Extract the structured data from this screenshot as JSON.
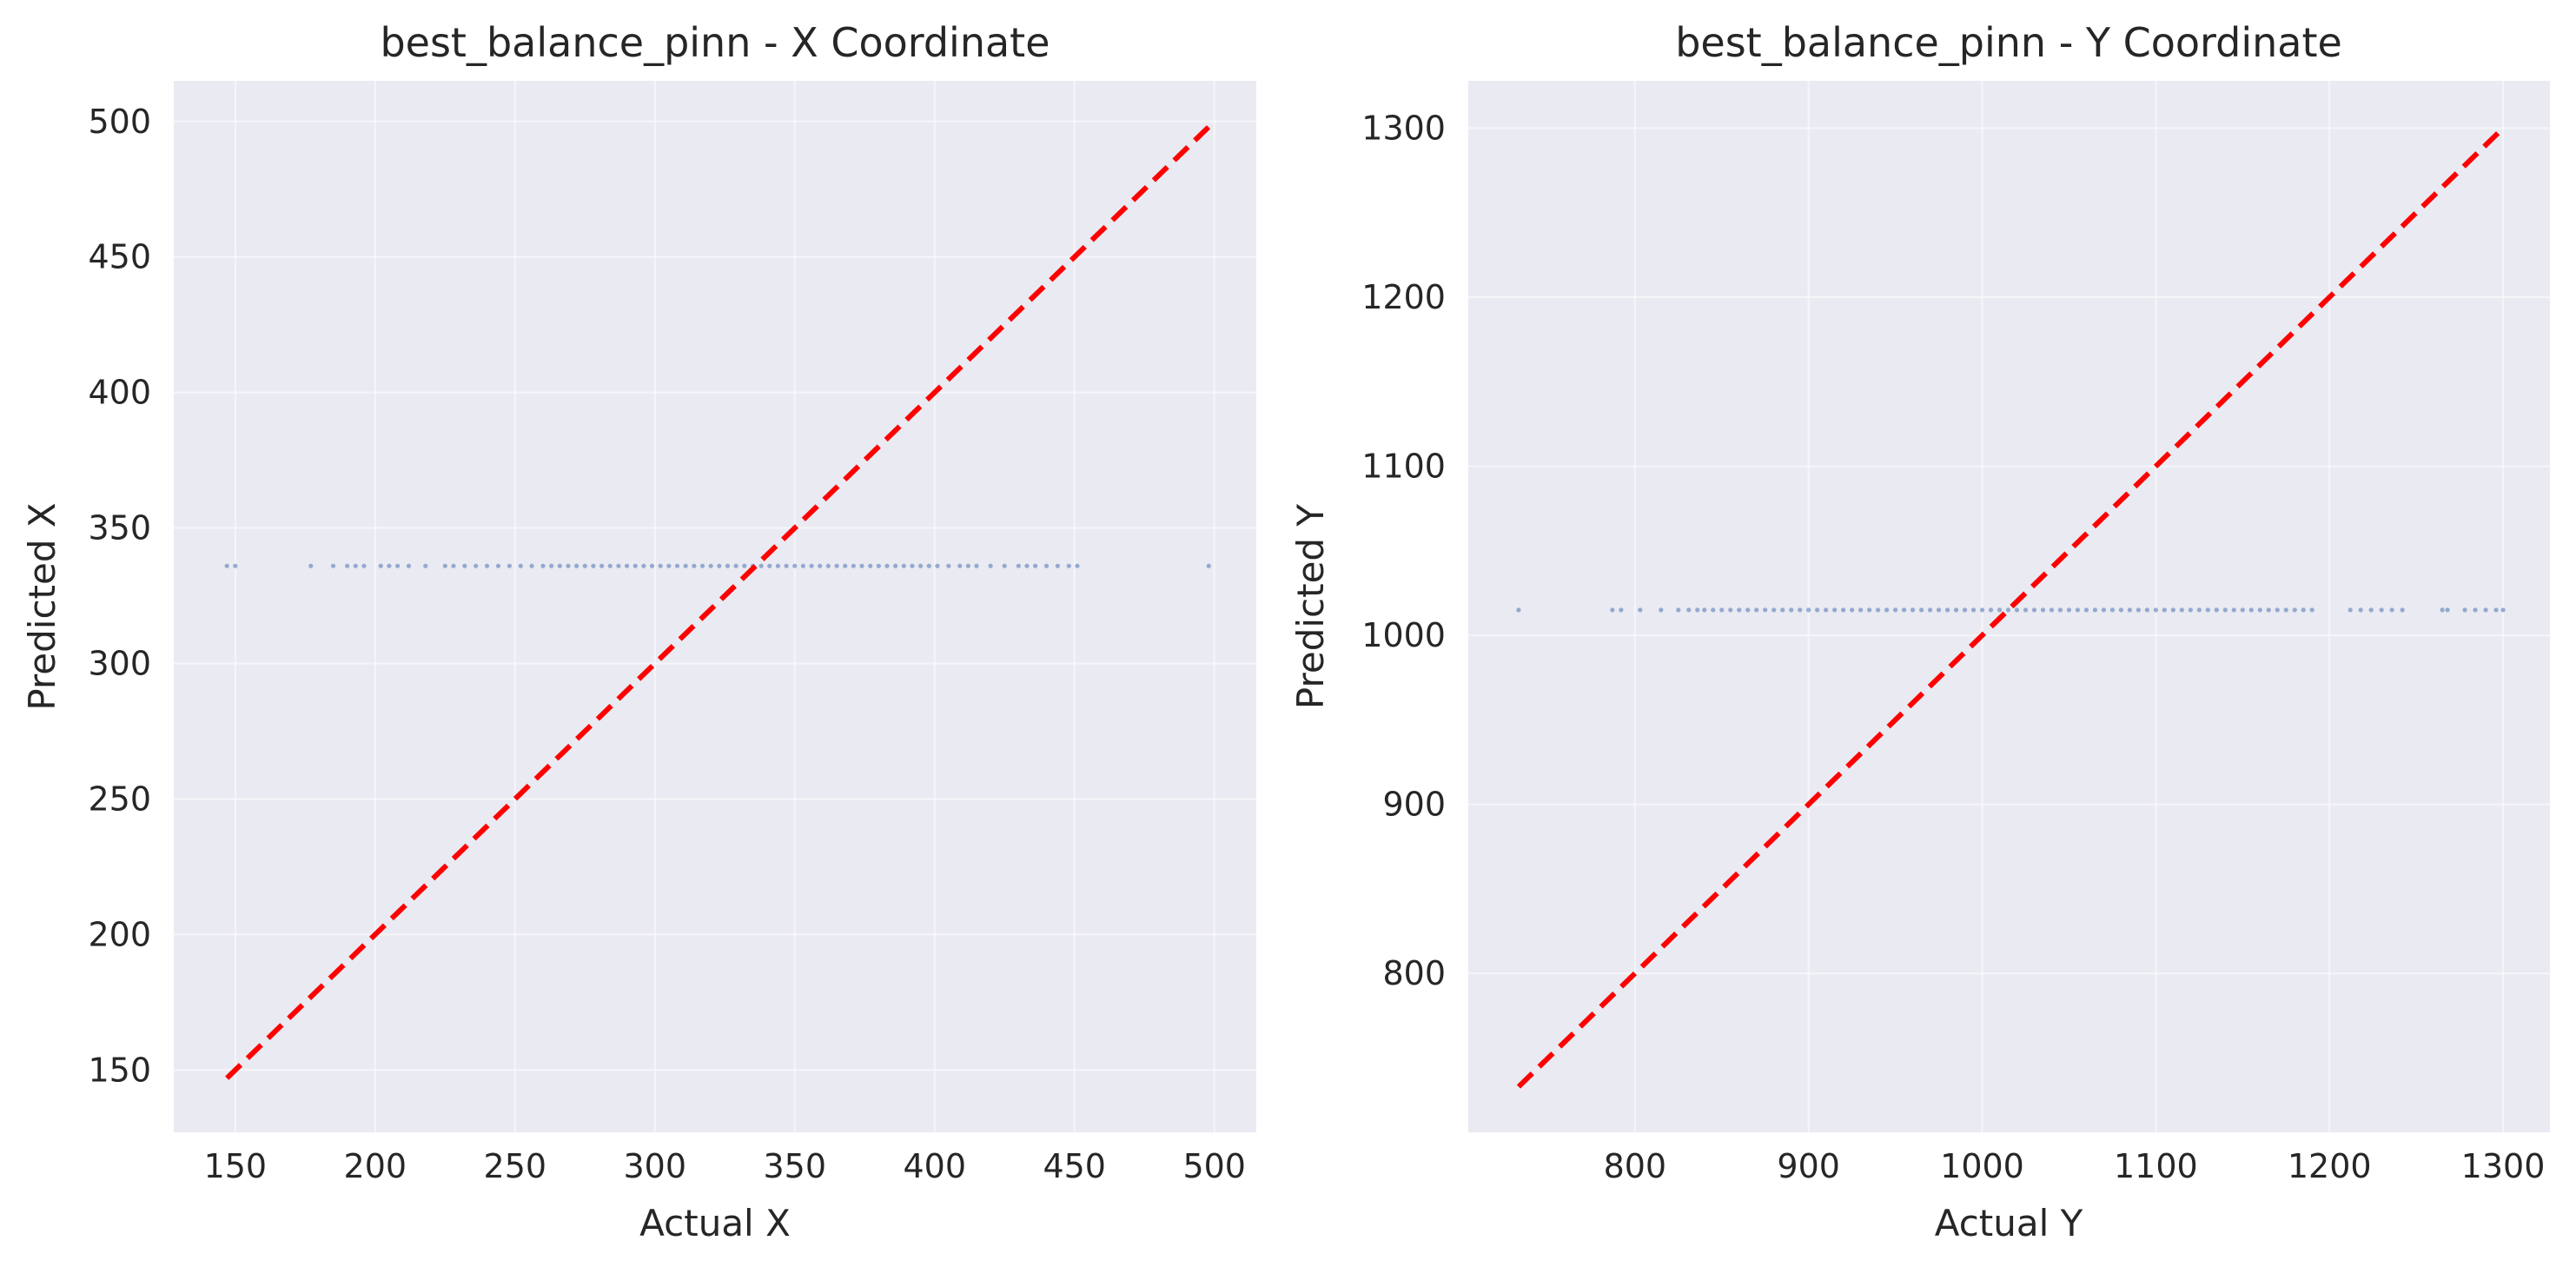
{
  "chart_data": [
    {
      "type": "scatter",
      "title": "best_balance_pinn - X Coordinate",
      "xlabel": "Actual X",
      "ylabel": "Predicted X",
      "xlim": [
        128,
        515
      ],
      "ylim": [
        127,
        515
      ],
      "xticks": [
        150,
        200,
        250,
        300,
        350,
        400,
        450,
        500
      ],
      "yticks": [
        150,
        200,
        250,
        300,
        350,
        400,
        450,
        500
      ],
      "grid": true,
      "reference_line": {
        "from": [
          147,
          147
        ],
        "to": [
          498,
          498
        ],
        "color": "#ff0000",
        "style": "dashed"
      },
      "series": [
        {
          "color": "#4c72b0",
          "x": [
            147,
            150,
            177,
            185,
            190,
            193,
            196,
            202,
            205,
            208,
            212,
            218,
            225,
            228,
            232,
            236,
            240,
            244,
            248,
            252,
            256,
            260,
            263,
            266,
            269,
            272,
            275,
            278,
            281,
            284,
            287,
            290,
            293,
            296,
            299,
            302,
            305,
            308,
            311,
            314,
            317,
            320,
            323,
            326,
            329,
            332,
            335,
            338,
            341,
            344,
            347,
            350,
            353,
            356,
            359,
            362,
            365,
            368,
            371,
            374,
            377,
            380,
            383,
            386,
            389,
            392,
            395,
            398,
            401,
            405,
            409,
            412,
            415,
            420,
            425,
            430,
            433,
            436,
            440,
            444,
            448,
            451,
            498
          ],
          "y": [
            336,
            336,
            336,
            336,
            336,
            336,
            336,
            336,
            336,
            336,
            336,
            336,
            336,
            336,
            336,
            336,
            336,
            336,
            336,
            336,
            336,
            336,
            336,
            336,
            336,
            336,
            336,
            336,
            336,
            336,
            336,
            336,
            336,
            336,
            336,
            336,
            336,
            336,
            336,
            336,
            336,
            336,
            336,
            336,
            336,
            336,
            336,
            336,
            336,
            336,
            336,
            336,
            336,
            336,
            336,
            336,
            336,
            336,
            336,
            336,
            336,
            336,
            336,
            336,
            336,
            336,
            336,
            336,
            336,
            336,
            336,
            336,
            336,
            336,
            336,
            336,
            336,
            336,
            336,
            336,
            336,
            336,
            336
          ]
        }
      ]
    },
    {
      "type": "scatter",
      "title": "best_balance_pinn - Y Coordinate",
      "xlabel": "Actual Y",
      "ylabel": "Predicted Y",
      "xlim": [
        704,
        1327
      ],
      "ylim": [
        706,
        1328
      ],
      "xticks": [
        800,
        900,
        1000,
        1100,
        1200,
        1300
      ],
      "yticks": [
        800,
        900,
        1000,
        1100,
        1200,
        1300
      ],
      "grid": true,
      "reference_line": {
        "from": [
          733,
          733
        ],
        "to": [
          1300,
          1300
        ],
        "color": "#ff0000",
        "style": "dashed"
      },
      "series": [
        {
          "color": "#4c72b0",
          "x": [
            733,
            787,
            792,
            803,
            815,
            825,
            831,
            836,
            840,
            845,
            850,
            855,
            860,
            865,
            870,
            875,
            880,
            885,
            890,
            895,
            900,
            905,
            910,
            915,
            920,
            925,
            930,
            935,
            940,
            945,
            950,
            955,
            960,
            965,
            970,
            975,
            980,
            985,
            990,
            995,
            1000,
            1005,
            1010,
            1015,
            1020,
            1025,
            1030,
            1035,
            1040,
            1045,
            1050,
            1055,
            1060,
            1065,
            1070,
            1075,
            1080,
            1085,
            1090,
            1095,
            1100,
            1105,
            1110,
            1115,
            1120,
            1125,
            1130,
            1135,
            1140,
            1145,
            1150,
            1155,
            1160,
            1165,
            1170,
            1175,
            1180,
            1185,
            1190,
            1212,
            1218,
            1224,
            1230,
            1236,
            1242,
            1265,
            1268,
            1278,
            1284,
            1290,
            1296,
            1300
          ],
          "y": [
            1015,
            1015,
            1015,
            1015,
            1015,
            1015,
            1015,
            1015,
            1015,
            1015,
            1015,
            1015,
            1015,
            1015,
            1015,
            1015,
            1015,
            1015,
            1015,
            1015,
            1015,
            1015,
            1015,
            1015,
            1015,
            1015,
            1015,
            1015,
            1015,
            1015,
            1015,
            1015,
            1015,
            1015,
            1015,
            1015,
            1015,
            1015,
            1015,
            1015,
            1015,
            1015,
            1015,
            1015,
            1015,
            1015,
            1015,
            1015,
            1015,
            1015,
            1015,
            1015,
            1015,
            1015,
            1015,
            1015,
            1015,
            1015,
            1015,
            1015,
            1015,
            1015,
            1015,
            1015,
            1015,
            1015,
            1015,
            1015,
            1015,
            1015,
            1015,
            1015,
            1015,
            1015,
            1015,
            1015,
            1015,
            1015,
            1015,
            1015,
            1015,
            1015,
            1015,
            1015,
            1015,
            1015,
            1015,
            1015,
            1015,
            1015,
            1015,
            1015
          ]
        }
      ]
    }
  ]
}
